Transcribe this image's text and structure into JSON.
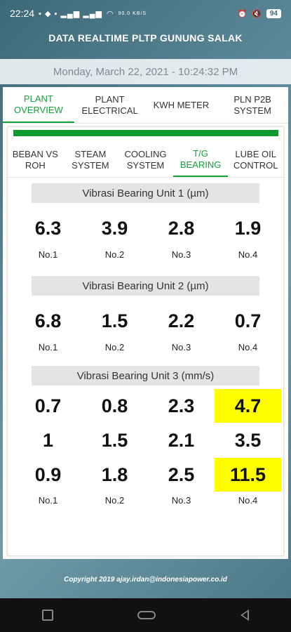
{
  "status_bar": {
    "time": "22:24",
    "network_speed": "90.0 KB/S",
    "battery": "94"
  },
  "app": {
    "title": "DATA REALTIME PLTP GUNUNG SALAK",
    "datetime": "Monday, March 22, 2021 - 10:24:32 PM",
    "copyright": "Copyright 2019 ajay.irdan@indonesiapower.co.id"
  },
  "main_tabs": [
    {
      "label": "PLANT OVERVIEW",
      "active": true
    },
    {
      "label": "PLANT ELECTRICAL",
      "active": false
    },
    {
      "label": "KWH METER",
      "active": false
    },
    {
      "label": "PLN P2B SYSTEM",
      "active": false
    }
  ],
  "sub_tabs": [
    {
      "label": "BEBAN VS ROH",
      "active": false
    },
    {
      "label": "STEAM SYSTEM",
      "active": false
    },
    {
      "label": "COOLING SYSTEM",
      "active": false
    },
    {
      "label": "T/G BEARING",
      "active": true
    },
    {
      "label": "LUBE OIL CONTROL",
      "active": false
    }
  ],
  "colors": {
    "accent": "#14a23b",
    "status_bar_green": "#0d9b2f",
    "highlight": "#ffff00"
  },
  "sections": [
    {
      "title": "Vibrasi Bearing Unit 1 (µm)",
      "rows": [
        {
          "values": [
            "6.3",
            "3.9",
            "2.8",
            "1.9"
          ],
          "highlight": [
            false,
            false,
            false,
            false
          ]
        }
      ],
      "labels": [
        "No.1",
        "No.2",
        "No.3",
        "No.4"
      ]
    },
    {
      "title": "Vibrasi Bearing Unit 2 (µm)",
      "rows": [
        {
          "values": [
            "6.8",
            "1.5",
            "2.2",
            "0.7"
          ],
          "highlight": [
            false,
            false,
            false,
            false
          ]
        }
      ],
      "labels": [
        "No.1",
        "No.2",
        "No.3",
        "No.4"
      ]
    },
    {
      "title": "Vibrasi Bearing Unit 3 (mm/s)",
      "rows": [
        {
          "values": [
            "0.7",
            "0.8",
            "2.3",
            "4.7"
          ],
          "highlight": [
            false,
            false,
            false,
            true
          ]
        },
        {
          "values": [
            "1",
            "1.5",
            "2.1",
            "3.5"
          ],
          "highlight": [
            false,
            false,
            false,
            false
          ]
        },
        {
          "values": [
            "0.9",
            "1.8",
            "2.5",
            "11.5"
          ],
          "highlight": [
            false,
            false,
            false,
            true
          ]
        }
      ],
      "labels": [
        "No.1",
        "No.2",
        "No.3",
        "No.4"
      ]
    }
  ]
}
